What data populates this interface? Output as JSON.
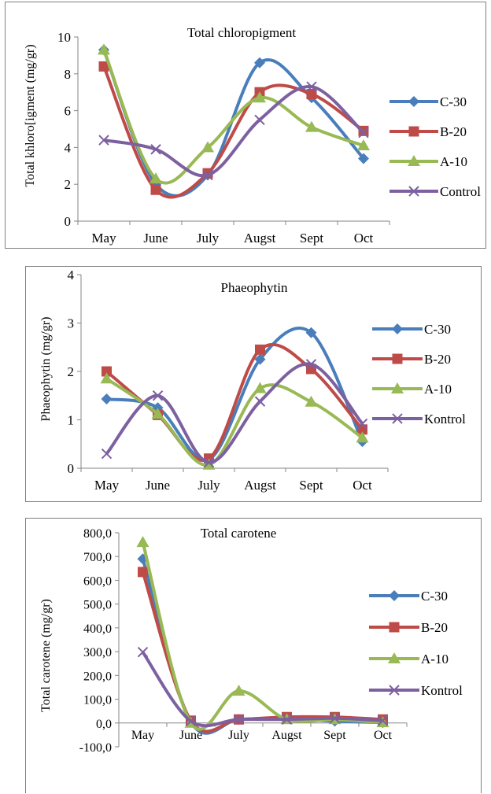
{
  "chart_data": [
    {
      "type": "line",
      "title": "Total chloropigment",
      "ylabel": "Total khloro[igment (mg/gr)",
      "xlabel": "",
      "categories": [
        "May",
        "June",
        "July",
        "Augst",
        "Sept",
        "Oct"
      ],
      "ylim": [
        0,
        10
      ],
      "yticks": [
        0,
        2,
        4,
        6,
        8,
        10
      ],
      "ytick_labels": [
        "0",
        "2",
        "4",
        "6",
        "8",
        "10"
      ],
      "smooth": true,
      "legend_position": "right",
      "series": [
        {
          "name": "C-30",
          "color": "#4a7ebb",
          "marker": "diamond",
          "values": [
            9.3,
            2.0,
            2.5,
            8.6,
            6.7,
            3.4
          ]
        },
        {
          "name": "B-20",
          "color": "#be4b48",
          "marker": "square",
          "values": [
            8.4,
            1.7,
            2.6,
            7.0,
            6.9,
            4.9
          ]
        },
        {
          "name": "A-10",
          "color": "#98b954",
          "marker": "triangle",
          "values": [
            9.3,
            2.3,
            4.0,
            6.7,
            5.1,
            4.1
          ]
        },
        {
          "name": "Control",
          "color": "#7d60a0",
          "marker": "x",
          "values": [
            4.4,
            3.9,
            2.5,
            5.5,
            7.3,
            4.8
          ]
        }
      ]
    },
    {
      "type": "line",
      "title": "Phaeophytin",
      "ylabel": "Phaeophytin (mg/gr)",
      "xlabel": "",
      "categories": [
        "May",
        "June",
        "July",
        "Augst",
        "Sept",
        "Oct"
      ],
      "ylim": [
        0,
        4
      ],
      "yticks": [
        0,
        1,
        2,
        3,
        4
      ],
      "ytick_labels": [
        "0",
        "1",
        "2",
        "3",
        "4"
      ],
      "smooth": true,
      "legend_position": "right",
      "series": [
        {
          "name": "C-30",
          "color": "#4a7ebb",
          "marker": "diamond",
          "values": [
            1.43,
            1.25,
            0.18,
            2.25,
            2.8,
            0.55
          ]
        },
        {
          "name": "B-20",
          "color": "#be4b48",
          "marker": "square",
          "values": [
            2.0,
            1.1,
            0.2,
            2.45,
            2.05,
            0.8
          ]
        },
        {
          "name": "A-10",
          "color": "#98b954",
          "marker": "triangle",
          "values": [
            1.85,
            1.12,
            0.07,
            1.65,
            1.37,
            0.63
          ]
        },
        {
          "name": "Kontrol",
          "color": "#7d60a0",
          "marker": "x",
          "values": [
            0.3,
            1.5,
            0.12,
            1.38,
            2.15,
            0.92
          ]
        }
      ]
    },
    {
      "type": "line",
      "title": "Total carotene",
      "ylabel": "Total carotene (mg/gr)",
      "xlabel": "",
      "categories": [
        "May",
        "June",
        "July",
        "Augst",
        "Sept",
        "Oct"
      ],
      "ylim": [
        -100,
        800
      ],
      "yticks": [
        -100,
        0,
        100,
        200,
        300,
        400,
        500,
        600,
        700,
        800
      ],
      "ytick_labels": [
        "-100,0",
        "0,0",
        "100,0",
        "200,0",
        "300,0",
        "400,0",
        "500,0",
        "600,0",
        "700,0",
        "800,0"
      ],
      "smooth": true,
      "legend_position": "right",
      "series": [
        {
          "name": "C-30",
          "color": "#4a7ebb",
          "marker": "diamond",
          "values": [
            690,
            5,
            15,
            20,
            8,
            2
          ]
        },
        {
          "name": "B-20",
          "color": "#be4b48",
          "marker": "square",
          "values": [
            635,
            10,
            15,
            25,
            25,
            15
          ]
        },
        {
          "name": "A-10",
          "color": "#98b954",
          "marker": "triangle",
          "values": [
            760,
            0,
            135,
            15,
            15,
            2
          ]
        },
        {
          "name": "Kontrol",
          "color": "#7d60a0",
          "marker": "x",
          "values": [
            298,
            8,
            15,
            15,
            20,
            10
          ]
        }
      ]
    }
  ]
}
